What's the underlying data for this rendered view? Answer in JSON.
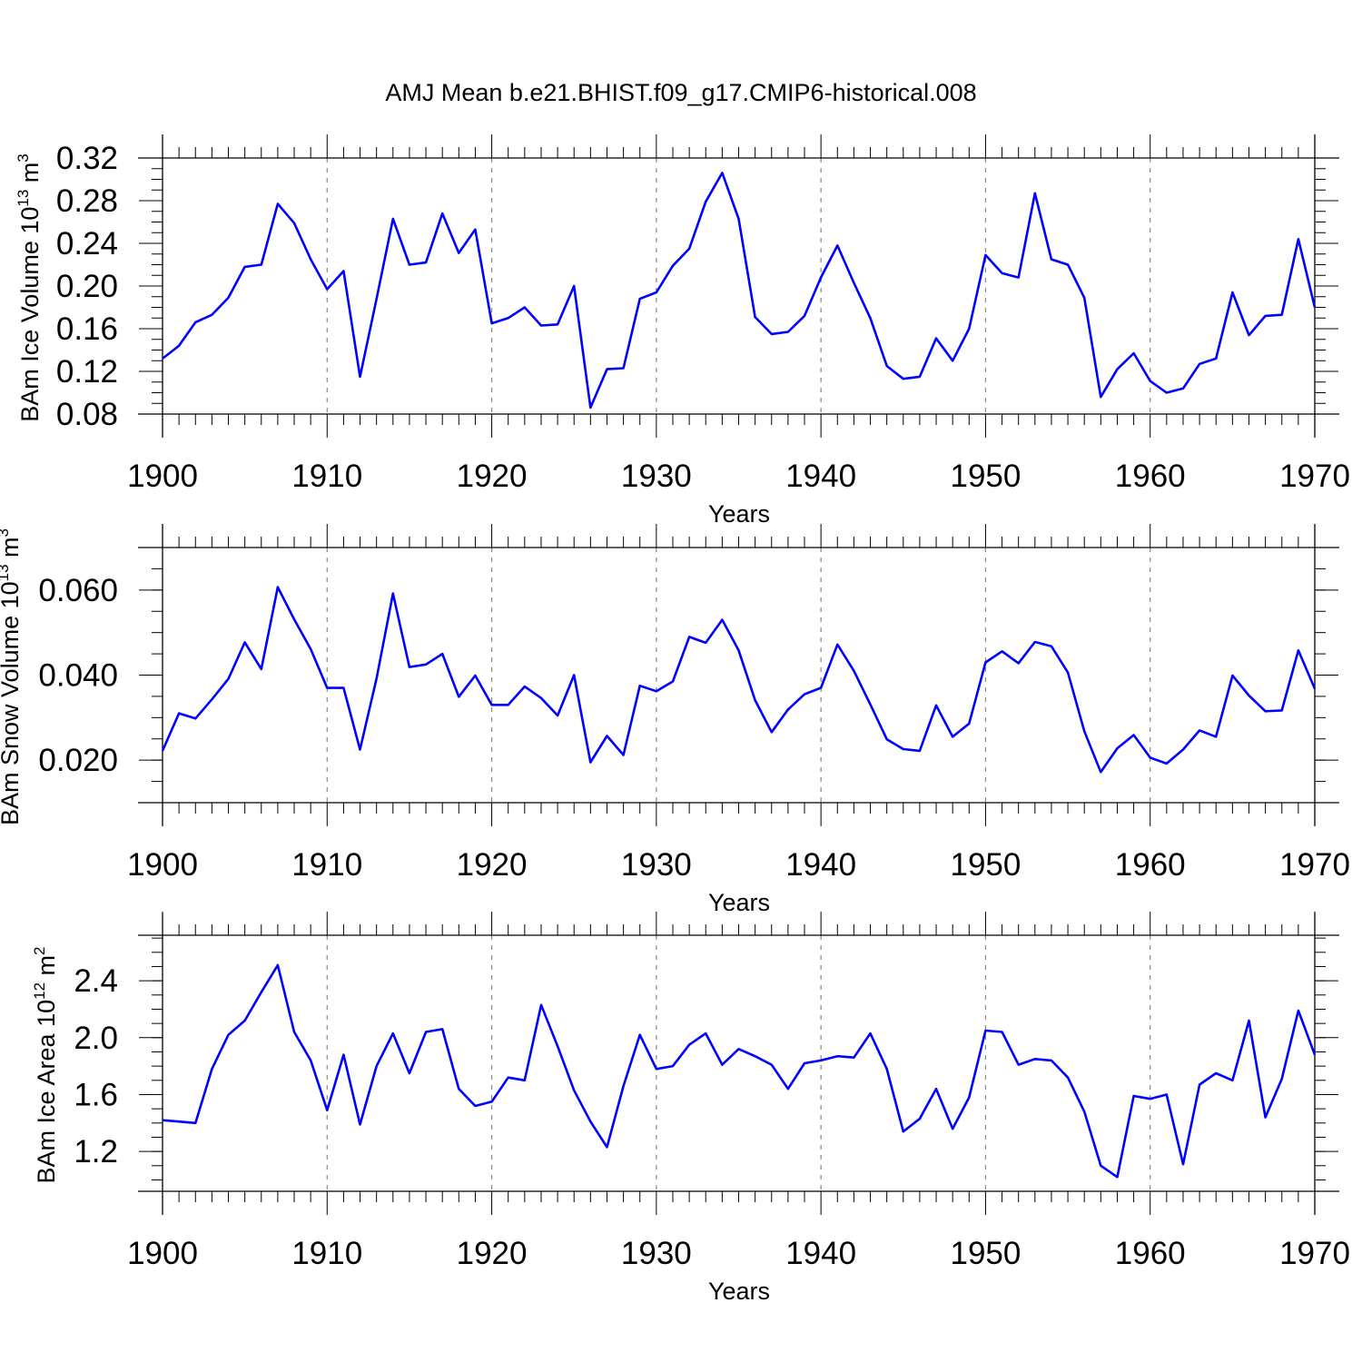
{
  "title": "AMJ Mean b.e21.BHIST.f09_g17.CMIP6-historical.008",
  "line_color": "#0000ff",
  "chart_data": [
    {
      "type": "line",
      "title": "",
      "xlabel": "Years",
      "ylabel": "BAm Ice Volume 10",
      "ylabel_exp": "13",
      "ylabel_unit": " m",
      "ylabel_unit_exp": "3",
      "xlim": [
        1900,
        1970
      ],
      "ylim": [
        0.08,
        0.32
      ],
      "xticks": [
        1900,
        1910,
        1920,
        1930,
        1940,
        1950,
        1960,
        1970
      ],
      "yticks": [
        "0.08",
        "0.12",
        "0.16",
        "0.20",
        "0.24",
        "0.28",
        "0.32"
      ],
      "ytick_values": [
        0.08,
        0.12,
        0.16,
        0.2,
        0.24,
        0.28,
        0.32
      ],
      "ymin_minor": 0.08,
      "ymax_minor": 0.32,
      "ystep_minor": 0.01,
      "grid": "x-dashed",
      "x": [
        1900,
        1901,
        1902,
        1903,
        1904,
        1905,
        1906,
        1907,
        1908,
        1909,
        1910,
        1911,
        1912,
        1913,
        1914,
        1915,
        1916,
        1917,
        1918,
        1919,
        1920,
        1921,
        1922,
        1923,
        1924,
        1925,
        1926,
        1927,
        1928,
        1929,
        1930,
        1931,
        1932,
        1933,
        1934,
        1935,
        1936,
        1937,
        1938,
        1939,
        1940,
        1941,
        1942,
        1943,
        1944,
        1945,
        1946,
        1947,
        1948,
        1949,
        1950,
        1951,
        1952,
        1953,
        1954,
        1955,
        1956,
        1957,
        1958,
        1959,
        1960,
        1961,
        1962,
        1963,
        1964,
        1965,
        1966,
        1967,
        1968,
        1969,
        1970
      ],
      "values": [
        0.132,
        0.144,
        0.166,
        0.173,
        0.189,
        0.218,
        0.22,
        0.277,
        0.259,
        0.225,
        0.197,
        0.214,
        0.115,
        0.188,
        0.263,
        0.22,
        0.222,
        0.268,
        0.231,
        0.253,
        0.165,
        0.17,
        0.18,
        0.163,
        0.164,
        0.2,
        0.086,
        0.122,
        0.123,
        0.188,
        0.194,
        0.219,
        0.235,
        0.279,
        0.306,
        0.263,
        0.171,
        0.155,
        0.157,
        0.172,
        0.208,
        0.238,
        0.203,
        0.17,
        0.125,
        0.113,
        0.115,
        0.151,
        0.13,
        0.16,
        0.229,
        0.212,
        0.208,
        0.287,
        0.225,
        0.22,
        0.189,
        0.096,
        0.122,
        0.137,
        0.111,
        0.1,
        0.104,
        0.127,
        0.132,
        0.194,
        0.154,
        0.172,
        0.173,
        0.244,
        0.18
      ]
    },
    {
      "type": "line",
      "title": "",
      "xlabel": "Years",
      "ylabel": "BAm Snow Volume 10",
      "ylabel_exp": "13",
      "ylabel_unit": " m",
      "ylabel_unit_exp": "3",
      "xlim": [
        1900,
        1970
      ],
      "ylim": [
        0.01,
        0.07
      ],
      "xticks": [
        1900,
        1910,
        1920,
        1930,
        1940,
        1950,
        1960,
        1970
      ],
      "yticks": [
        "0.020",
        "0.040",
        "0.060"
      ],
      "ytick_values": [
        0.02,
        0.04,
        0.06
      ],
      "ymin_minor": 0.01,
      "ymax_minor": 0.07,
      "ystep_minor": 0.005,
      "grid": "x-dashed",
      "x": [
        1900,
        1901,
        1902,
        1903,
        1904,
        1905,
        1906,
        1907,
        1908,
        1909,
        1910,
        1911,
        1912,
        1913,
        1914,
        1915,
        1916,
        1917,
        1918,
        1919,
        1920,
        1921,
        1922,
        1923,
        1924,
        1925,
        1926,
        1927,
        1928,
        1929,
        1930,
        1931,
        1932,
        1933,
        1934,
        1935,
        1936,
        1937,
        1938,
        1939,
        1940,
        1941,
        1942,
        1943,
        1944,
        1945,
        1946,
        1947,
        1948,
        1949,
        1950,
        1951,
        1952,
        1953,
        1954,
        1955,
        1956,
        1957,
        1958,
        1959,
        1960,
        1961,
        1962,
        1963,
        1964,
        1965,
        1966,
        1967,
        1968,
        1969,
        1970
      ],
      "values": [
        0.0222,
        0.031,
        0.0298,
        0.0343,
        0.0391,
        0.0477,
        0.0414,
        0.0607,
        0.0531,
        0.0461,
        0.037,
        0.037,
        0.0225,
        0.0392,
        0.0592,
        0.0419,
        0.0425,
        0.045,
        0.0349,
        0.0399,
        0.033,
        0.033,
        0.0373,
        0.0346,
        0.0305,
        0.04,
        0.0195,
        0.0257,
        0.0212,
        0.0375,
        0.0362,
        0.0385,
        0.049,
        0.0476,
        0.053,
        0.0458,
        0.0341,
        0.0266,
        0.0319,
        0.0355,
        0.037,
        0.0472,
        0.041,
        0.0331,
        0.0249,
        0.0226,
        0.0222,
        0.0329,
        0.0255,
        0.0286,
        0.043,
        0.0456,
        0.0428,
        0.0478,
        0.0468,
        0.0406,
        0.0268,
        0.0172,
        0.0228,
        0.0259,
        0.0206,
        0.0192,
        0.0225,
        0.027,
        0.0255,
        0.0399,
        0.0352,
        0.0315,
        0.0317,
        0.0458,
        0.0368
      ]
    },
    {
      "type": "line",
      "title": "",
      "xlabel": "Years",
      "ylabel": "BAm Ice Area 10",
      "ylabel_exp": "12",
      "ylabel_unit": " m",
      "ylabel_unit_exp": "2",
      "xlim": [
        1900,
        1970
      ],
      "ylim": [
        0.92,
        2.72
      ],
      "xticks": [
        1900,
        1910,
        1920,
        1930,
        1940,
        1950,
        1960,
        1970
      ],
      "yticks": [
        "1.2",
        "1.6",
        "2.0",
        "2.4"
      ],
      "ytick_values": [
        1.2,
        1.6,
        2.0,
        2.4
      ],
      "ymin_minor": 1.0,
      "ymax_minor": 2.7,
      "ystep_minor": 0.1,
      "grid": "x-dashed",
      "x": [
        1900,
        1901,
        1902,
        1903,
        1904,
        1905,
        1906,
        1907,
        1908,
        1909,
        1910,
        1911,
        1912,
        1913,
        1914,
        1915,
        1916,
        1917,
        1918,
        1919,
        1920,
        1921,
        1922,
        1923,
        1924,
        1925,
        1926,
        1927,
        1928,
        1929,
        1930,
        1931,
        1932,
        1933,
        1934,
        1935,
        1936,
        1937,
        1938,
        1939,
        1940,
        1941,
        1942,
        1943,
        1944,
        1945,
        1946,
        1947,
        1948,
        1949,
        1950,
        1951,
        1952,
        1953,
        1954,
        1955,
        1956,
        1957,
        1958,
        1959,
        1960,
        1961,
        1962,
        1963,
        1964,
        1965,
        1966,
        1967,
        1968,
        1969,
        1970
      ],
      "values": [
        1.42,
        1.41,
        1.4,
        1.78,
        2.02,
        2.12,
        2.32,
        2.51,
        2.04,
        1.84,
        1.49,
        1.88,
        1.39,
        1.8,
        2.03,
        1.75,
        2.04,
        2.06,
        1.64,
        1.52,
        1.55,
        1.72,
        1.7,
        2.23,
        1.94,
        1.63,
        1.41,
        1.23,
        1.66,
        2.02,
        1.78,
        1.8,
        1.95,
        2.03,
        1.81,
        1.92,
        1.87,
        1.81,
        1.64,
        1.82,
        1.84,
        1.87,
        1.86,
        2.03,
        1.78,
        1.34,
        1.43,
        1.64,
        1.36,
        1.58,
        2.05,
        2.04,
        1.81,
        1.85,
        1.84,
        1.72,
        1.48,
        1.1,
        1.02,
        1.59,
        1.57,
        1.6,
        1.11,
        1.67,
        1.75,
        1.7,
        2.12,
        1.44,
        1.71,
        2.19,
        1.88
      ]
    }
  ]
}
